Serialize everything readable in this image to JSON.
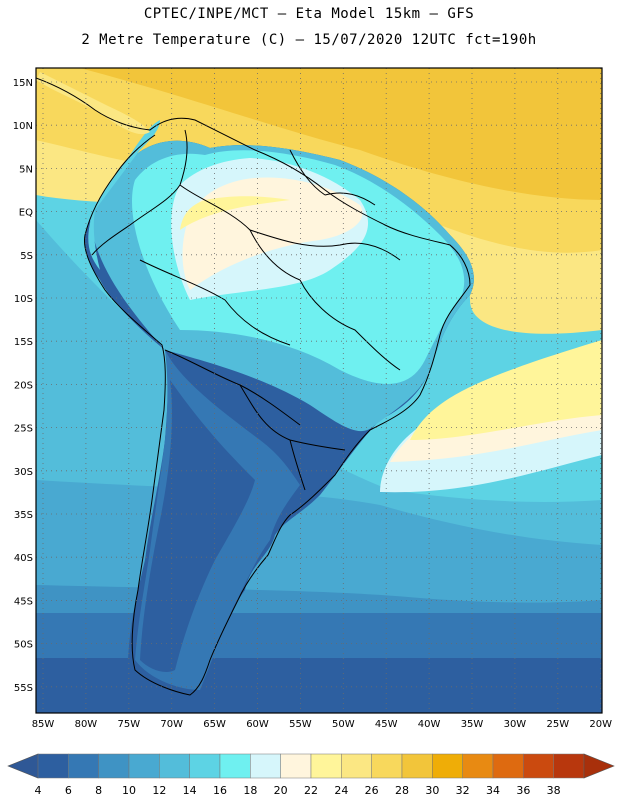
{
  "title_line1": "CPTEC/INPE/MCT –   Eta Model 15km – GFS",
  "title_line2": "2 Metre Temperature (C) – 15/07/2020 12UTC fct=190h",
  "map": {
    "lat_labels": [
      "15N",
      "10N",
      "5N",
      "EQ",
      "5S",
      "10S",
      "15S",
      "20S",
      "25S",
      "30S",
      "35S",
      "40S",
      "45S",
      "50S",
      "55S"
    ],
    "lon_labels": [
      "85W",
      "80W",
      "75W",
      "70W",
      "65W",
      "60W",
      "55W",
      "50W",
      "45W",
      "40W",
      "35W",
      "30W",
      "25W",
      "20W"
    ]
  },
  "colorbar": {
    "ticks": [
      "4",
      "6",
      "8",
      "10",
      "12",
      "14",
      "16",
      "18",
      "20",
      "22",
      "24",
      "26",
      "28",
      "30",
      "32",
      "34",
      "36",
      "38"
    ],
    "colors": [
      "#2d5fa0",
      "#3578b4",
      "#3f93c4",
      "#49a9d1",
      "#53bdda",
      "#5dd3e4",
      "#6ff0f0",
      "#d6f6fb",
      "#fff5dd",
      "#fff59a",
      "#fbe783",
      "#f8d85c",
      "#f2c53a",
      "#efad07",
      "#e88a12",
      "#de6a10",
      "#cb4a0f",
      "#b8370d"
    ],
    "low_color": "#2f5896",
    "high_color": "#a8300b"
  }
}
